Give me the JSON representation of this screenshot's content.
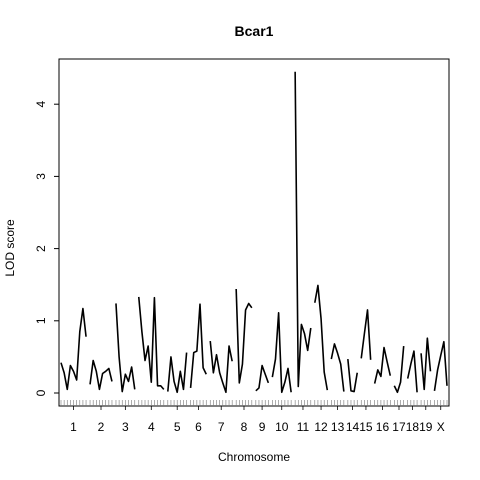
{
  "chart_data": {
    "type": "line",
    "title": "Bcar1",
    "xlabel": "Chromosome",
    "ylabel": "LOD score",
    "ylim": [
      0,
      4.6
    ],
    "yticks": [
      0,
      1,
      2,
      3,
      4
    ],
    "grid": false,
    "legend": "none",
    "line_color": "#000000",
    "chromosomes": [
      {
        "label": "1",
        "lod": [
          0.42,
          0.28,
          0.05,
          0.38,
          0.3,
          0.18,
          0.85,
          1.17,
          0.78
        ]
      },
      {
        "label": "2",
        "lod": [
          0.12,
          0.45,
          0.3,
          0.05,
          0.27,
          0.3,
          0.34,
          0.16
        ]
      },
      {
        "label": "3",
        "lod": [
          1.24,
          0.5,
          0.02,
          0.26,
          0.16,
          0.36,
          0.05
        ]
      },
      {
        "label": "4",
        "lod": [
          1.33,
          0.85,
          0.45,
          0.65,
          0.15,
          1.32,
          0.1,
          0.1,
          0.05
        ]
      },
      {
        "label": "5",
        "lod": [
          0.02,
          0.5,
          0.16,
          0.01,
          0.3,
          0.05,
          0.56
        ]
      },
      {
        "label": "6",
        "lod": [
          0.07,
          0.56,
          0.58,
          1.23,
          0.35,
          0.26
        ]
      },
      {
        "label": "7",
        "lod": [
          0.72,
          0.28,
          0.53,
          0.28,
          0.14,
          0.01,
          0.65,
          0.44
        ]
      },
      {
        "label": "8",
        "lod": [
          1.44,
          0.14,
          0.4,
          1.15,
          1.24,
          1.18
        ]
      },
      {
        "label": "9",
        "lod": [
          0.03,
          0.07,
          0.38,
          0.26,
          0.14
        ]
      },
      {
        "label": "10",
        "lod": [
          0.22,
          0.47,
          1.11,
          0.01,
          0.15,
          0.34,
          0.01
        ]
      },
      {
        "label": "11",
        "lod": [
          4.45,
          0.09,
          0.95,
          0.82,
          0.59,
          0.9
        ]
      },
      {
        "label": "12",
        "lod": [
          1.25,
          1.49,
          1.03,
          0.29,
          0.04
        ]
      },
      {
        "label": "13",
        "lod": [
          0.47,
          0.68,
          0.55,
          0.4,
          0.02
        ]
      },
      {
        "label": "14",
        "lod": [
          0.47,
          0.03,
          0.02,
          0.28
        ]
      },
      {
        "label": "15",
        "lod": [
          0.48,
          0.82,
          1.15,
          0.46
        ]
      },
      {
        "label": "16",
        "lod": [
          0.13,
          0.32,
          0.23,
          0.63,
          0.43,
          0.24
        ]
      },
      {
        "label": "17",
        "lod": [
          0.1,
          0.01,
          0.15,
          0.65
        ]
      },
      {
        "label": "18",
        "lod": [
          0.2,
          0.4,
          0.58,
          0.01
        ]
      },
      {
        "label": "19",
        "lod": [
          0.55,
          0.05,
          0.76,
          0.3
        ]
      },
      {
        "label": "X",
        "lod": [
          0.03,
          0.32,
          0.52,
          0.71,
          0.1
        ]
      }
    ]
  }
}
